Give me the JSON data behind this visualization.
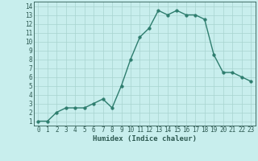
{
  "x": [
    0,
    1,
    2,
    3,
    4,
    5,
    6,
    7,
    8,
    9,
    10,
    11,
    12,
    13,
    14,
    15,
    16,
    17,
    18,
    19,
    20,
    21,
    22,
    23
  ],
  "y": [
    1,
    1,
    2,
    2.5,
    2.5,
    2.5,
    3,
    3.5,
    2.5,
    5,
    8,
    10.5,
    11.5,
    13.5,
    13,
    13.5,
    13,
    13,
    12.5,
    8.5,
    6.5,
    6.5,
    6,
    5.5
  ],
  "line_color": "#2e7d6e",
  "marker_color": "#2e7d6e",
  "bg_color": "#c8eeed",
  "grid_color": "#a8d4cf",
  "xlabel": "Humidex (Indice chaleur)",
  "xlim": [
    -0.5,
    23.5
  ],
  "ylim": [
    0.5,
    14.5
  ],
  "yticks": [
    1,
    2,
    3,
    4,
    5,
    6,
    7,
    8,
    9,
    10,
    11,
    12,
    13,
    14
  ],
  "xticks": [
    0,
    1,
    2,
    3,
    4,
    5,
    6,
    7,
    8,
    9,
    10,
    11,
    12,
    13,
    14,
    15,
    16,
    17,
    18,
    19,
    20,
    21,
    22,
    23
  ],
  "xtick_labels": [
    "0",
    "1",
    "2",
    "3",
    "4",
    "5",
    "6",
    "7",
    "8",
    "9",
    "10",
    "11",
    "12",
    "13",
    "14",
    "15",
    "16",
    "17",
    "18",
    "19",
    "20",
    "21",
    "22",
    "23"
  ],
  "axis_label_color": "#2e5a52",
  "tick_color": "#2e5a52",
  "font_size_axis": 6.5,
  "font_size_tick": 5.5,
  "line_width": 1.0,
  "marker_size": 2.5
}
